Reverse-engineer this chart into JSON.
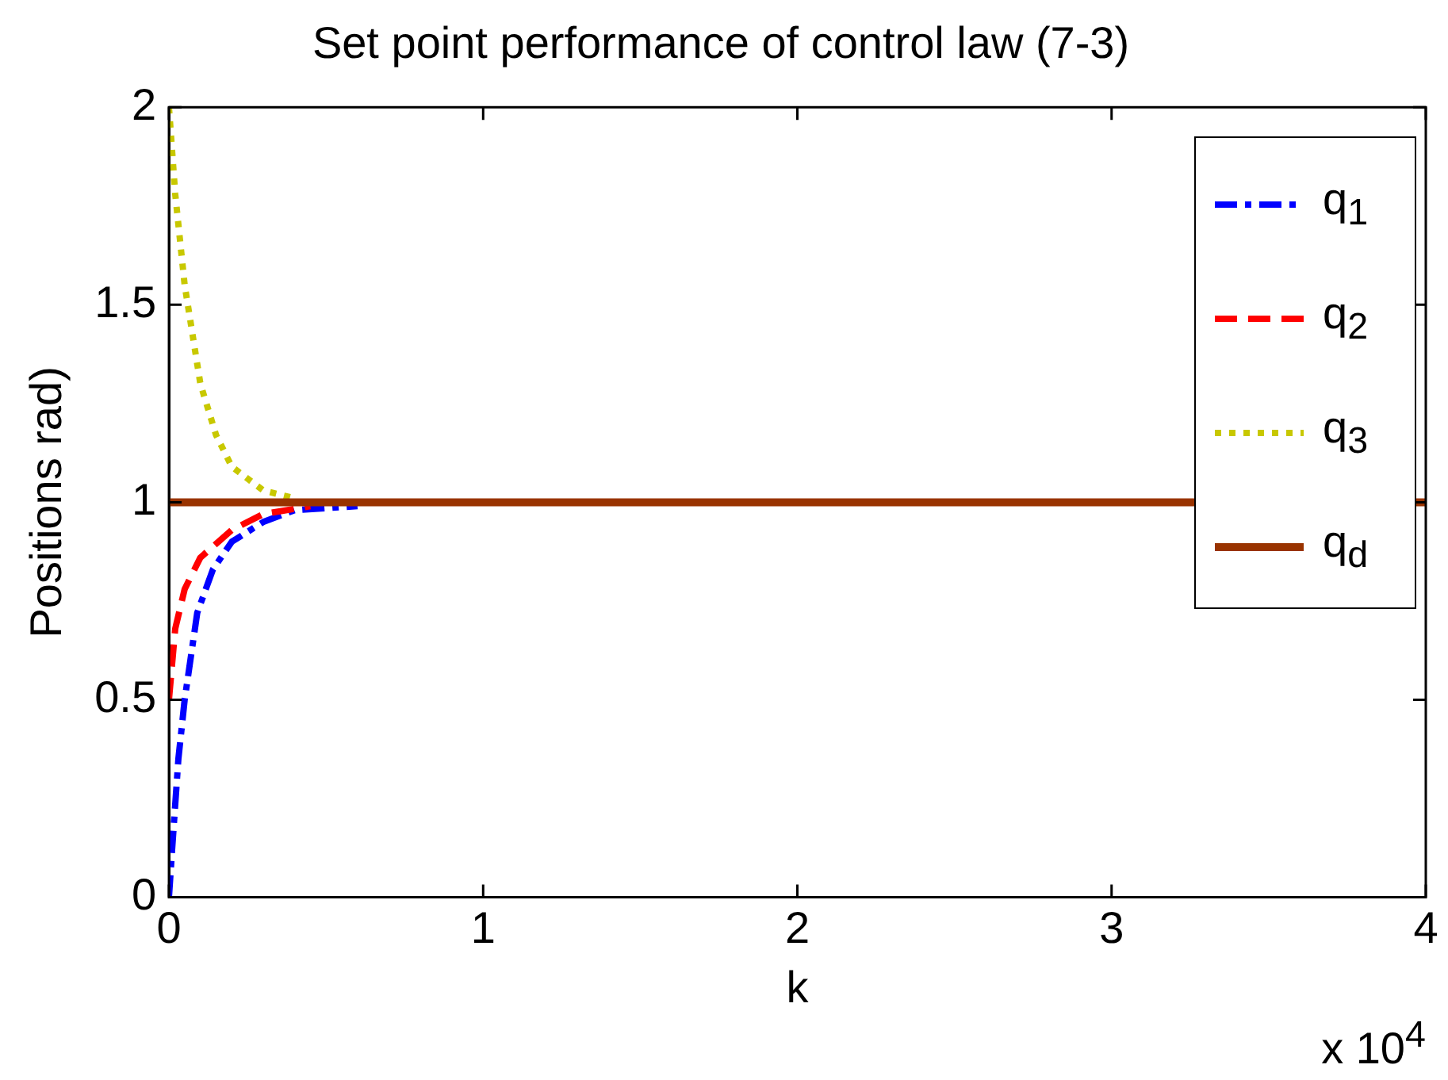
{
  "chart_data": {
    "type": "line",
    "title": "Set point performance of control law (7-3)",
    "xlabel": "k",
    "ylabel": "Positions rad)",
    "annotations": [
      "x 10$^{4}$"
    ],
    "xlim": [
      0,
      4
    ],
    "xticks": [
      0,
      1,
      2,
      3,
      4
    ],
    "ylim": [
      0,
      2
    ],
    "yticks": [
      0,
      0.5,
      1,
      1.5,
      2
    ],
    "legend": "top right",
    "marker": "none",
    "series": [
      {
        "name": "q$_{1}$",
        "color": "#0000ff",
        "line_style": "dashdot",
        "x": [
          0,
          0.01,
          0.03,
          0.05,
          0.09,
          0.14,
          0.2,
          0.3,
          0.4,
          0.6
        ],
        "values": [
          0,
          0.12,
          0.35,
          0.5,
          0.72,
          0.83,
          0.9,
          0.95,
          0.98,
          0.99
        ]
      },
      {
        "name": "q$_{2}$",
        "color": "#ff0000",
        "line_style": "dashed",
        "x": [
          0,
          0.02,
          0.05,
          0.1,
          0.2,
          0.3,
          0.45
        ],
        "values": [
          0.5,
          0.68,
          0.78,
          0.86,
          0.93,
          0.97,
          0.99
        ]
      },
      {
        "name": "q$_{3}$",
        "color": "#c8c800",
        "line_style": "dotted",
        "x": [
          0,
          0.02,
          0.05,
          0.1,
          0.15,
          0.2,
          0.3,
          0.4
        ],
        "values": [
          2,
          1.78,
          1.55,
          1.3,
          1.17,
          1.09,
          1.03,
          1.01
        ]
      },
      {
        "name": "q$_{d}$",
        "color": "#993300",
        "line_style": "solid",
        "x": [
          0,
          4
        ],
        "values": [
          1,
          1
        ]
      }
    ]
  }
}
